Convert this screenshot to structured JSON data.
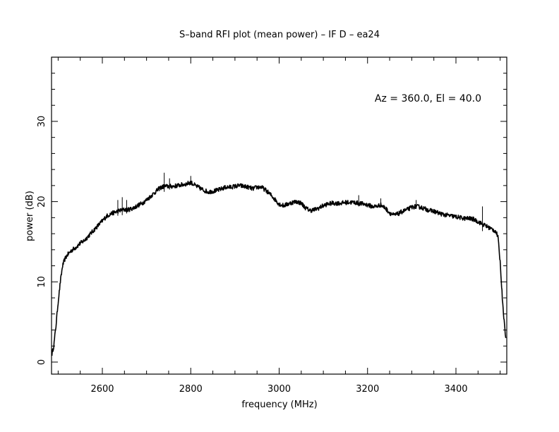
{
  "chart_data": {
    "type": "line",
    "title": "S–band RFI plot (mean power) – IF D – ea24",
    "xlabel": "frequency (MHz)",
    "ylabel": "power (dB)",
    "annotation": "Az = 360.0, El = 40.0",
    "xlim": [
      2485,
      3515
    ],
    "ylim": [
      -1.5,
      38
    ],
    "xticks_major": [
      2600,
      2800,
      3000,
      3200,
      3400
    ],
    "xticks_minor_step": 50,
    "yticks_major": [
      0,
      10,
      20,
      30
    ],
    "yticks_minor_step": 2,
    "grid": false,
    "line_color": "#000000",
    "series": [
      {
        "x": [
          2486,
          2490,
          2495,
          2500,
          2505,
          2510,
          2515,
          2520,
          2530,
          2540,
          2550,
          2560,
          2570,
          2580,
          2590,
          2600,
          2610,
          2620,
          2630,
          2640,
          2650,
          2660,
          2670,
          2680,
          2690,
          2700,
          2710,
          2720,
          2730,
          2740,
          2750,
          2760,
          2770,
          2780,
          2790,
          2800,
          2810,
          2820,
          2830,
          2840,
          2850,
          2860,
          2870,
          2880,
          2890,
          2900,
          2910,
          2920,
          2930,
          2940,
          2950,
          2960,
          2970,
          2980,
          2990,
          3000,
          3010,
          3020,
          3030,
          3040,
          3050,
          3060,
          3070,
          3080,
          3090,
          3100,
          3110,
          3120,
          3130,
          3140,
          3150,
          3160,
          3170,
          3180,
          3190,
          3200,
          3210,
          3220,
          3230,
          3240,
          3250,
          3260,
          3270,
          3280,
          3290,
          3300,
          3310,
          3320,
          3330,
          3340,
          3350,
          3360,
          3370,
          3380,
          3390,
          3400,
          3410,
          3420,
          3430,
          3440,
          3450,
          3460,
          3470,
          3480,
          3490,
          3495,
          3500,
          3505,
          3510,
          3513
        ],
        "y": [
          1.0,
          2.0,
          4.5,
          7.5,
          10.0,
          12.0,
          12.8,
          13.3,
          13.9,
          14.3,
          14.8,
          15.2,
          15.8,
          16.4,
          17.0,
          17.6,
          18.2,
          18.5,
          18.7,
          18.9,
          19.0,
          19.0,
          19.2,
          19.5,
          19.8,
          20.2,
          20.7,
          21.2,
          21.7,
          21.9,
          21.9,
          21.9,
          22.0,
          22.1,
          22.2,
          22.4,
          22.0,
          21.7,
          21.4,
          21.2,
          21.3,
          21.4,
          21.6,
          21.8,
          21.8,
          21.9,
          22.0,
          21.9,
          21.8,
          21.6,
          21.8,
          21.8,
          21.4,
          20.9,
          20.3,
          19.7,
          19.5,
          19.7,
          19.9,
          20.0,
          19.8,
          19.2,
          18.9,
          19.0,
          19.2,
          19.5,
          19.7,
          19.8,
          19.8,
          19.8,
          19.9,
          19.9,
          19.9,
          19.8,
          19.7,
          19.6,
          19.4,
          19.4,
          19.6,
          19.2,
          18.6,
          18.3,
          18.5,
          18.8,
          19.0,
          19.3,
          19.4,
          19.3,
          19.1,
          18.9,
          18.8,
          18.6,
          18.4,
          18.3,
          18.2,
          18.1,
          18.0,
          17.9,
          17.9,
          17.8,
          17.5,
          17.2,
          16.9,
          16.6,
          16.3,
          15.6,
          12.5,
          8.0,
          4.5,
          3.0
        ]
      }
    ]
  }
}
